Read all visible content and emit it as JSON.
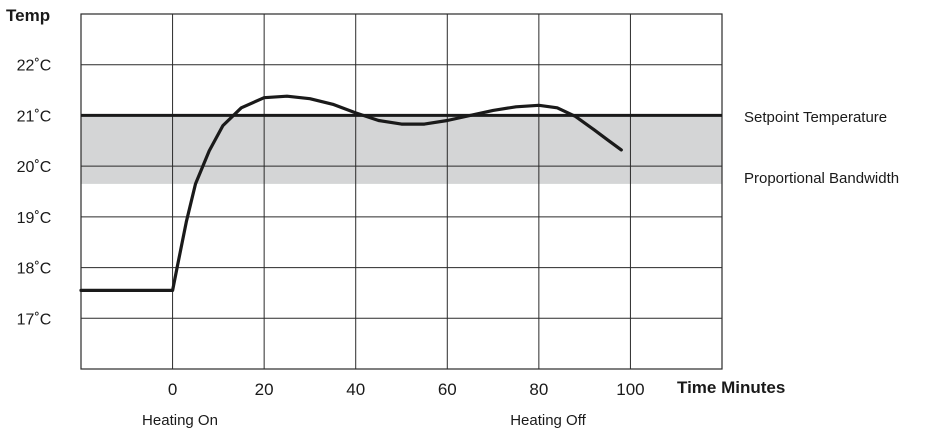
{
  "chart_data": {
    "type": "line",
    "ylabel": "Temp",
    "xlabel": "Time Minutes",
    "xlim": [
      -20,
      120
    ],
    "ylim": [
      16,
      23
    ],
    "x_ticks": [
      0,
      20,
      40,
      60,
      80,
      100
    ],
    "x_tick_labels": [
      "0",
      "20",
      "40",
      "60",
      "80",
      "100"
    ],
    "y_ticks": [
      17,
      18,
      19,
      20,
      21,
      22
    ],
    "y_tick_labels": [
      "17˚C",
      "18˚C",
      "19˚C",
      "20˚C",
      "21˚C",
      "22˚C"
    ],
    "grid": true,
    "setpoint": {
      "label": "Setpoint Temperature",
      "value": 21.0
    },
    "band": {
      "label": "Proportional Bandwidth",
      "low": 19.65,
      "high": 21.0,
      "color": "#d4d5d6"
    },
    "series": [
      {
        "color": "#1a1a1a",
        "x": [
          -20,
          0,
          1,
          3,
          5,
          8,
          11,
          15,
          20,
          25,
          30,
          35,
          40,
          45,
          50,
          55,
          60,
          65,
          70,
          75,
          80,
          84,
          88,
          92,
          95,
          98
        ],
        "y": [
          17.55,
          17.55,
          18.0,
          18.9,
          19.65,
          20.3,
          20.8,
          21.15,
          21.35,
          21.38,
          21.33,
          21.22,
          21.05,
          20.9,
          20.83,
          20.83,
          20.9,
          21.0,
          21.1,
          21.17,
          21.2,
          21.15,
          20.98,
          20.72,
          20.52,
          20.32
        ]
      }
    ],
    "annotations": [
      {
        "text": "Heating On",
        "x": 0
      },
      {
        "text": "Heating Off",
        "x": 82
      }
    ]
  }
}
